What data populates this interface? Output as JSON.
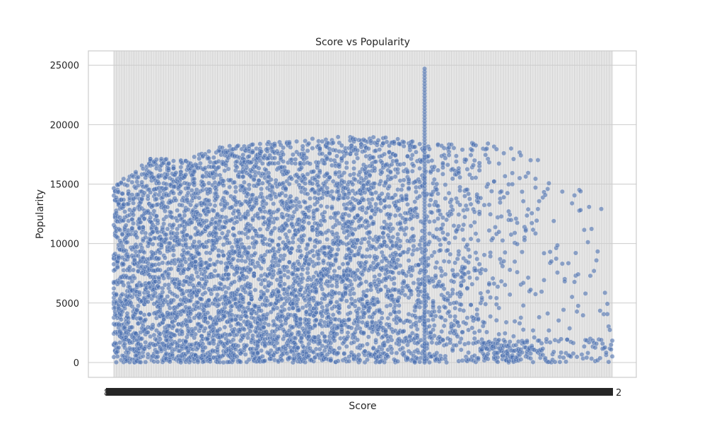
{
  "chart_data": {
    "type": "scatter",
    "title": "Score vs Popularity",
    "xlabel": "Score",
    "ylabel": "Popularity",
    "ylim": [
      -1250,
      26200
    ],
    "yticks": [
      0,
      5000,
      10000,
      15000,
      20000,
      25000
    ],
    "x_category_count": 410,
    "point_color": "#4c72b0",
    "point_opacity": 0.6,
    "grid": true,
    "grid_color": "#cccccc",
    "axes_edge_color": "#cccccc",
    "xtick_first": "8",
    "xtick_last": "2",
    "series": [
      {
        "name": "",
        "density_profile": [
          {
            "x": 0,
            "max": 15000,
            "density": 0.95
          },
          {
            "x": 10,
            "max": 15600,
            "density": 0.9
          },
          {
            "x": 30,
            "max": 17200,
            "density": 0.9
          },
          {
            "x": 60,
            "max": 17000,
            "density": 0.95
          },
          {
            "x": 80,
            "max": 18000,
            "density": 0.95
          },
          {
            "x": 110,
            "max": 18500,
            "density": 0.9
          },
          {
            "x": 160,
            "max": 18900,
            "density": 0.85
          },
          {
            "x": 200,
            "max": 19000,
            "density": 0.8
          },
          {
            "x": 230,
            "max": 18900,
            "density": 0.7
          },
          {
            "x": 250,
            "max": 18500,
            "density": 0.55
          },
          {
            "x": 270,
            "max": 18500,
            "density": 0.4
          },
          {
            "x": 300,
            "max": 18600,
            "density": 0.3
          },
          {
            "x": 330,
            "max": 18000,
            "density": 0.2
          },
          {
            "x": 345,
            "max": 18300,
            "density": 0.14
          },
          {
            "x": 360,
            "max": 14700,
            "density": 0.06
          },
          {
            "x": 380,
            "max": 15000,
            "density": 0.05
          },
          {
            "x": 409,
            "max": 12400,
            "density": 0.04
          }
        ],
        "spike": {
          "x": 255,
          "max": 24700
        }
      }
    ]
  }
}
